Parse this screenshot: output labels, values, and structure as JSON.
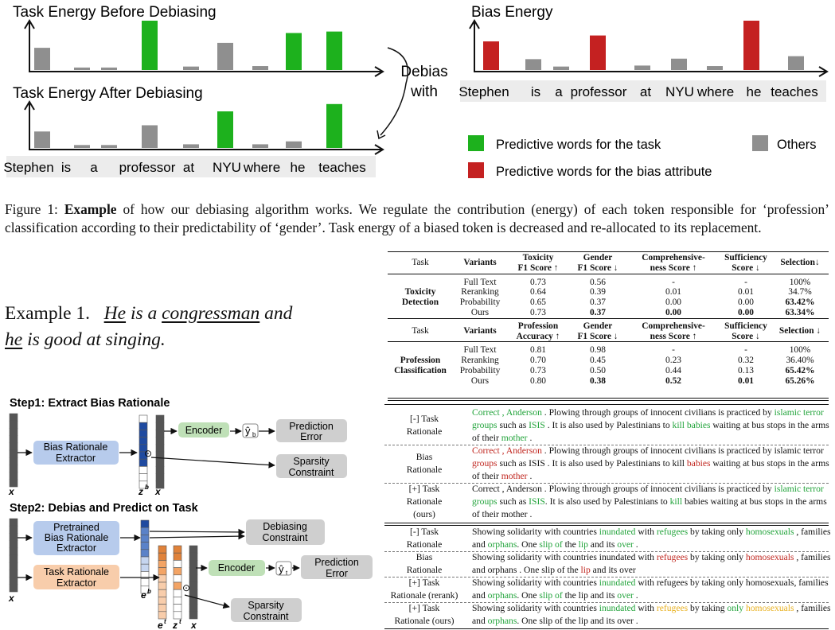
{
  "fig_top": {
    "title_before": "Task Energy Before Debiasing",
    "title_after": "Task Energy After Debiasing",
    "title_bias": "Bias Energy",
    "debias_with": [
      "Debias",
      "with"
    ],
    "tokens": [
      "Stephen",
      "is",
      "a",
      "professor",
      "at",
      "NYU",
      "where",
      "he",
      "teaches"
    ],
    "legend": {
      "task": "Predictive words for the task",
      "bias": "Predictive words for the bias attribute",
      "others": "Others"
    },
    "colors": {
      "green": "#1db11d",
      "red": "#c42121",
      "gray": "#8f8f8f"
    },
    "energy_before": [
      0.45,
      0.05,
      0.05,
      1.0,
      0.07,
      0.55,
      0.08,
      0.75,
      0.78
    ],
    "energy_after": [
      0.45,
      0.08,
      0.08,
      0.62,
      0.1,
      1.0,
      0.1,
      0.18,
      1.2
    ],
    "energy_bias": [
      0.58,
      0.22,
      0.07,
      0.7,
      0.09,
      0.23,
      0.08,
      1.0,
      0.28
    ],
    "types_task": [
      "o",
      "o",
      "o",
      "g",
      "o",
      "o",
      "o",
      "g",
      "g"
    ],
    "types_after": [
      "o",
      "o",
      "o",
      "o",
      "o",
      "g",
      "o",
      "o",
      "g"
    ],
    "types_bias": [
      "r",
      "o",
      "o",
      "r",
      "o",
      "o",
      "o",
      "r",
      "o"
    ]
  },
  "caption": {
    "prefix": "Figure 1: ",
    "bold": "Example",
    "text": " of how our debiasing algorithm works. We regulate the contribution (energy) of each token responsible for ‘profession’ classification according to their predictability of ‘gender’. Task energy of a biased token is decreased and re-allocated to its replacement."
  },
  "example": {
    "label": "Example 1.",
    "w1": "He",
    "w2": " is a ",
    "w3": "congressman",
    "w4": " and",
    "w5": "he",
    "w6": " is good at singing."
  },
  "diagram": {
    "step1": "Step1: Extract Bias Rationale",
    "step2": "Step2: Debias and Predict on Task",
    "bias_extractor": [
      "Bias Rationale",
      "Extractor"
    ],
    "encoder": "Encoder",
    "yb": "ŷ",
    "yb_sub": "b",
    "yt_sub": "t",
    "prediction_error": [
      "Prediction",
      "Error"
    ],
    "sparsity": [
      "Sparsity",
      "Constraint"
    ],
    "pretrained": [
      "Pretrained",
      "Bias Rationale",
      "Extractor"
    ],
    "task_extractor": [
      "Task Rationale",
      "Extractor"
    ],
    "debiasing": [
      "Debiasing",
      "Constraint"
    ],
    "x": "x",
    "z": "z",
    "e": "e",
    "odot": "⊙",
    "sup_b": "b",
    "sup_t": "t"
  },
  "table": {
    "headers1": [
      "Task",
      "Variants",
      "Toxicity",
      "F1 Score ↑",
      "Gender",
      "F1 Score ↓",
      "Comprehensive-",
      "ness Score ↑",
      "Sufficiency",
      "Score ↓",
      "Selection↓"
    ],
    "task1": [
      "Toxicity",
      "Detection"
    ],
    "rows1": [
      [
        "Full Text",
        "0.73",
        "0.56",
        "-",
        "-",
        "100%"
      ],
      [
        "Reranking",
        "0.64",
        "0.39",
        "0.01",
        "0.01",
        "34.7%"
      ],
      [
        "Probability",
        "0.65",
        "0.37",
        "0.00",
        "0.00",
        "63.42%"
      ],
      [
        "Ours",
        "0.73",
        "0.37",
        "0.00",
        "0.00",
        "63.34%"
      ]
    ],
    "headers2": [
      "Task",
      "Variants",
      "Profession",
      "Accuracy ↑",
      "Gender",
      "F1 Score ↓",
      "Comprehensive-",
      "ness Score ↑",
      "Sufficiency",
      "Score ↓",
      "Selection ↓"
    ],
    "task2": [
      "Profession",
      "Classification"
    ],
    "rows2": [
      [
        "Full Text",
        "0.81",
        "0.98",
        "-",
        "-",
        "100%"
      ],
      [
        "Reranking",
        "0.70",
        "0.45",
        "0.23",
        "0.32",
        "36.40%"
      ],
      [
        "Probability",
        "0.73",
        "0.50",
        "0.44",
        "0.13",
        "65.42%"
      ],
      [
        "Ours",
        "0.80",
        "0.38",
        "0.52",
        "0.01",
        "65.26%"
      ]
    ]
  },
  "examples": {
    "a_labels": [
      [
        "[-] Task",
        "Rationale"
      ],
      [
        "Bias",
        "Rationale"
      ],
      [
        "[+] Task",
        "Rationale",
        "(ours)"
      ]
    ],
    "b_labels": [
      [
        "[-] Task",
        "Rationale"
      ],
      [
        "Bias",
        "Rationale"
      ],
      [
        "[+] Task",
        "Rationale (rerank)"
      ],
      [
        "[+] Task",
        "Rationale (ours)"
      ]
    ],
    "a1": [
      [
        "Correct , Anderson",
        "g"
      ],
      [
        " . Plowing through groups of innocent civilians is practiced by ",
        ""
      ],
      [
        "islamic terror groups",
        "g"
      ],
      [
        " such as ",
        ""
      ],
      [
        "ISIS",
        "g"
      ],
      [
        " . It is also used by Palestinians to ",
        ""
      ],
      [
        "kill babies",
        "g"
      ],
      [
        " waiting at bus stops in the arms of their ",
        ""
      ],
      [
        "mother",
        "g"
      ],
      [
        " .",
        ""
      ]
    ],
    "a2": [
      [
        "Correct , Anderson",
        "r"
      ],
      [
        " . Plowing through groups of innocent civilians is practiced by islamic terror ",
        ""
      ],
      [
        "groups",
        "r"
      ],
      [
        " such as ISIS . It is also used by Palestinians to kill ",
        ""
      ],
      [
        "babies",
        "r"
      ],
      [
        " waiting at bus stops in the arms of their ",
        ""
      ],
      [
        "mother",
        "r"
      ],
      [
        " .",
        ""
      ]
    ],
    "a3": [
      [
        "Correct , Anderson . Plowing through groups of innocent civilians is practiced by ",
        ""
      ],
      [
        "islamic terror groups",
        "g"
      ],
      [
        " such as ",
        ""
      ],
      [
        "ISIS",
        "g"
      ],
      [
        ". It is also used by Palestinians to ",
        ""
      ],
      [
        "kill",
        "g"
      ],
      [
        " babies waiting at bus stops in the arms of their mother .",
        ""
      ]
    ],
    "b1": [
      [
        "Showing solidarity with countries ",
        ""
      ],
      [
        "inundated",
        "g"
      ],
      [
        " with ",
        ""
      ],
      [
        "refugees",
        "g"
      ],
      [
        " by taking only ",
        ""
      ],
      [
        "homosexuals",
        "g"
      ],
      [
        " , families and ",
        ""
      ],
      [
        "orphans",
        "g"
      ],
      [
        ". One ",
        ""
      ],
      [
        "slip of",
        "g"
      ],
      [
        " the ",
        ""
      ],
      [
        "lip",
        "g"
      ],
      [
        " and its ",
        ""
      ],
      [
        "over",
        "g"
      ],
      [
        " .",
        ""
      ]
    ],
    "b2": [
      [
        "Showing solidarity with countries inundated with ",
        ""
      ],
      [
        "refugees",
        "r"
      ],
      [
        " by taking only ",
        ""
      ],
      [
        "homosexuals",
        "r"
      ],
      [
        " , families and orphans . One slip of the ",
        ""
      ],
      [
        "lip",
        "r"
      ],
      [
        " and its over",
        ""
      ]
    ],
    "b3": [
      [
        "Showing solidarity with countries ",
        ""
      ],
      [
        "inundated",
        "g"
      ],
      [
        " with refugees by taking only homosexuals, families and ",
        ""
      ],
      [
        "orphans",
        "g"
      ],
      [
        ". One ",
        ""
      ],
      [
        "slip of",
        "g"
      ],
      [
        " the lip and its ",
        ""
      ],
      [
        "over",
        "g"
      ],
      [
        " .",
        ""
      ]
    ],
    "b4": [
      [
        "Showing solidarity with countries ",
        ""
      ],
      [
        "inundated",
        "g"
      ],
      [
        " with ",
        ""
      ],
      [
        "refugees",
        "y"
      ],
      [
        " by taking ",
        ""
      ],
      [
        "only",
        "g"
      ],
      [
        " ",
        ""
      ],
      [
        "homosexuals",
        "y"
      ],
      [
        " , families and ",
        ""
      ],
      [
        "orphans",
        "g"
      ],
      [
        ". One slip of the lip and its over .",
        ""
      ]
    ]
  }
}
